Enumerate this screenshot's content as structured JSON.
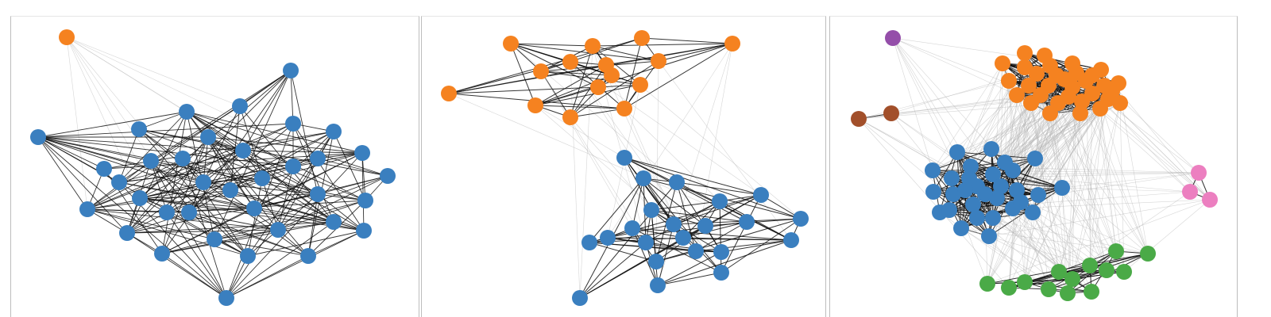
{
  "colors": {
    "community_0": "#3a7fbf",
    "community_1": "#f58220",
    "community_2": "#4aaa47",
    "community_3": "#ec7fc0",
    "community_4": "#a24f2a",
    "community_5": "#944ea9",
    "edge_intra": "#111111",
    "edge_inter": "#b4b4b4"
  },
  "panels": [
    {
      "name": "graph-panel-left",
      "communities": [
        {
          "color_key": "community_1",
          "count": 1
        },
        {
          "color_key": "community_0",
          "count": 36
        }
      ]
    },
    {
      "name": "graph-panel-middle",
      "communities": [
        {
          "color_key": "community_1",
          "count": 15
        },
        {
          "color_key": "community_0",
          "count": 22
        }
      ]
    },
    {
      "name": "graph-panel-right",
      "communities": [
        {
          "color_key": "community_5",
          "count": 1
        },
        {
          "color_key": "community_4",
          "count": 2
        },
        {
          "color_key": "community_1",
          "count": 32
        },
        {
          "color_key": "community_0",
          "count": 30
        },
        {
          "color_key": "community_3",
          "count": 3
        },
        {
          "color_key": "community_2",
          "count": 13
        }
      ]
    }
  ]
}
